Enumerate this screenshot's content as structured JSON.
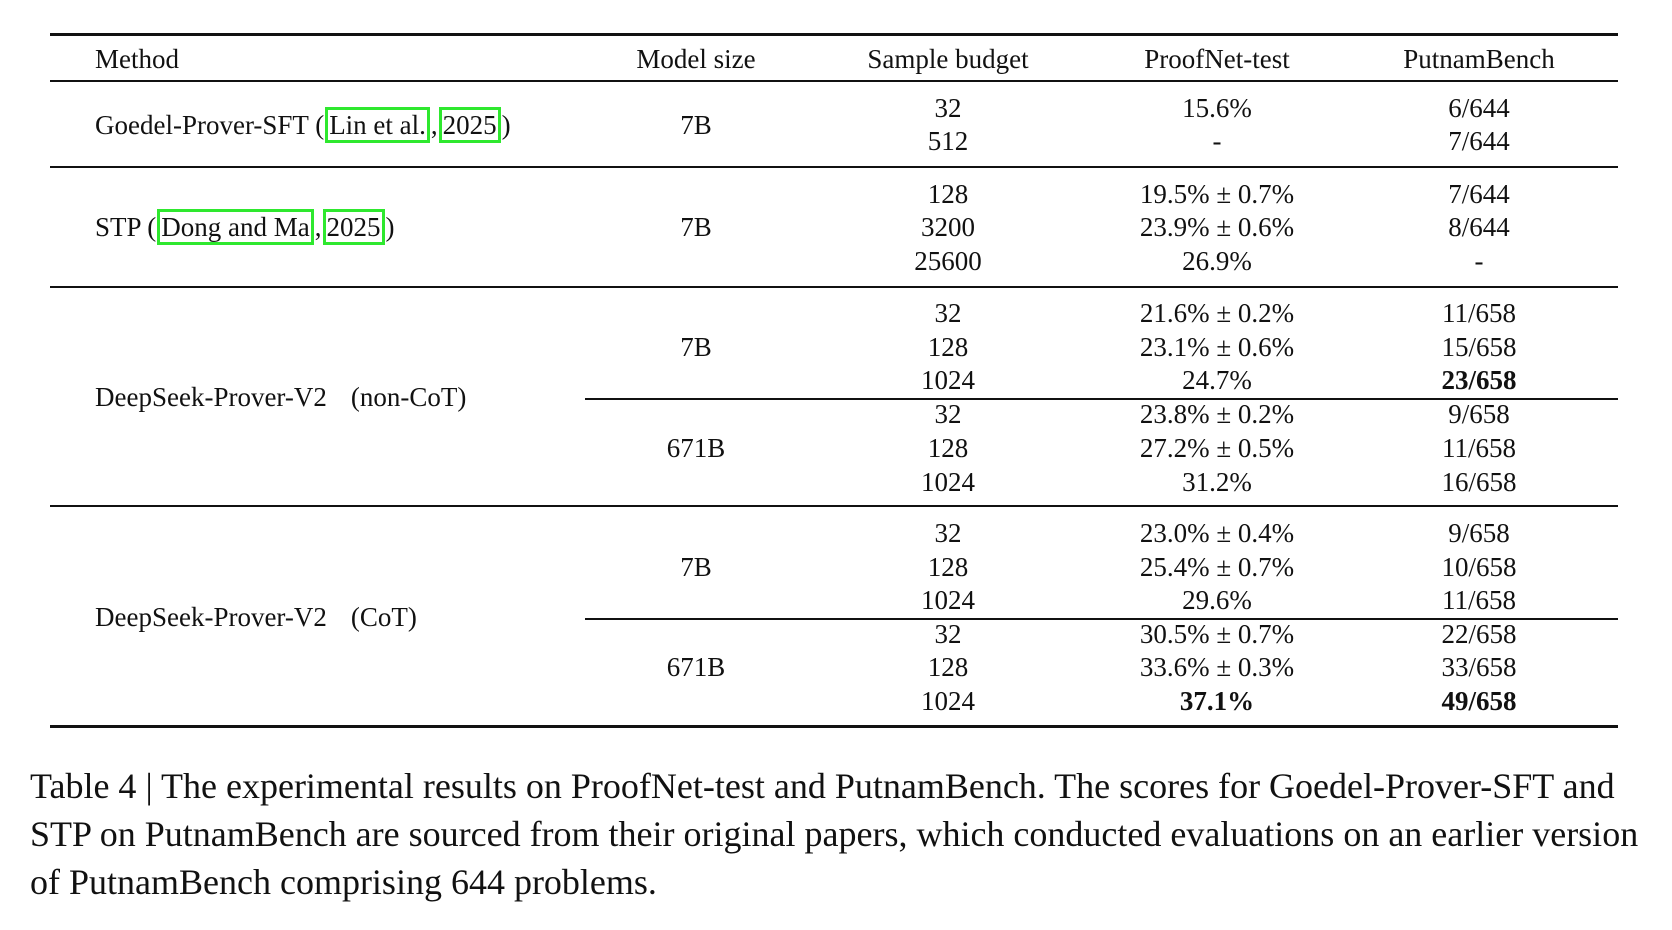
{
  "table": {
    "headers": {
      "method": "Method",
      "model_size": "Model size",
      "sample_budget": "Sample budget",
      "proofnet": "ProofNet-test",
      "putnam": "PutnamBench"
    },
    "groups": [
      {
        "method": "Goedel-Prover-SFT",
        "cite_authors": "Lin et al.",
        "cite_year": "2025",
        "blocks": [
          {
            "size": "7B",
            "rows": [
              {
                "budget": "32",
                "proofnet": "15.6%",
                "putnam": "6/644"
              },
              {
                "budget": "512",
                "proofnet": "-",
                "putnam": "7/644"
              }
            ]
          }
        ]
      },
      {
        "method": "STP",
        "cite_authors": "Dong and Ma",
        "cite_year": "2025",
        "blocks": [
          {
            "size": "7B",
            "rows": [
              {
                "budget": "128",
                "proofnet": "19.5% ± 0.7%",
                "putnam": "7/644"
              },
              {
                "budget": "3200",
                "proofnet": "23.9% ± 0.6%",
                "putnam": "8/644"
              },
              {
                "budget": "25600",
                "proofnet": "26.9%",
                "putnam": "-"
              }
            ]
          }
        ]
      },
      {
        "method": "DeepSeek-Prover-V2",
        "variant": "(non-CoT)",
        "blocks": [
          {
            "size": "7B",
            "rows": [
              {
                "budget": "32",
                "proofnet": "21.6% ± 0.2%",
                "putnam": "11/658"
              },
              {
                "budget": "128",
                "proofnet": "23.1% ± 0.6%",
                "putnam": "15/658"
              },
              {
                "budget": "1024",
                "proofnet": "24.7%",
                "putnam": "23/658"
              }
            ]
          },
          {
            "size": "671B",
            "rows": [
              {
                "budget": "32",
                "proofnet": "23.8% ± 0.2%",
                "putnam": "9/658"
              },
              {
                "budget": "128",
                "proofnet": "27.2% ± 0.5%",
                "putnam": "11/658"
              },
              {
                "budget": "1024",
                "proofnet": "31.2%",
                "putnam": "16/658"
              }
            ]
          }
        ]
      },
      {
        "method": "DeepSeek-Prover-V2",
        "variant": "(CoT)",
        "blocks": [
          {
            "size": "7B",
            "rows": [
              {
                "budget": "32",
                "proofnet": "23.0% ± 0.4%",
                "putnam": "9/658"
              },
              {
                "budget": "128",
                "proofnet": "25.4% ± 0.7%",
                "putnam": "10/658"
              },
              {
                "budget": "1024",
                "proofnet": "29.6%",
                "putnam": "11/658"
              }
            ]
          },
          {
            "size": "671B",
            "rows": [
              {
                "budget": "32",
                "proofnet": "30.5% ± 0.7%",
                "putnam": "22/658"
              },
              {
                "budget": "128",
                "proofnet": "33.6% ± 0.3%",
                "putnam": "33/658"
              },
              {
                "budget": "1024",
                "proofnet": "37.1%",
                "putnam": "49/658"
              }
            ]
          }
        ]
      }
    ]
  },
  "caption": {
    "label": "Table 4",
    "separator": "|",
    "text": "The experimental results on ProofNet-test and PutnamBench. The scores for Goedel-Prover-SFT and STP on PutnamBench are sourced from their original papers, which conducted evaluations on an earlier version of PutnamBench comprising 644 problems."
  },
  "highlight_color": "#2ee82e"
}
